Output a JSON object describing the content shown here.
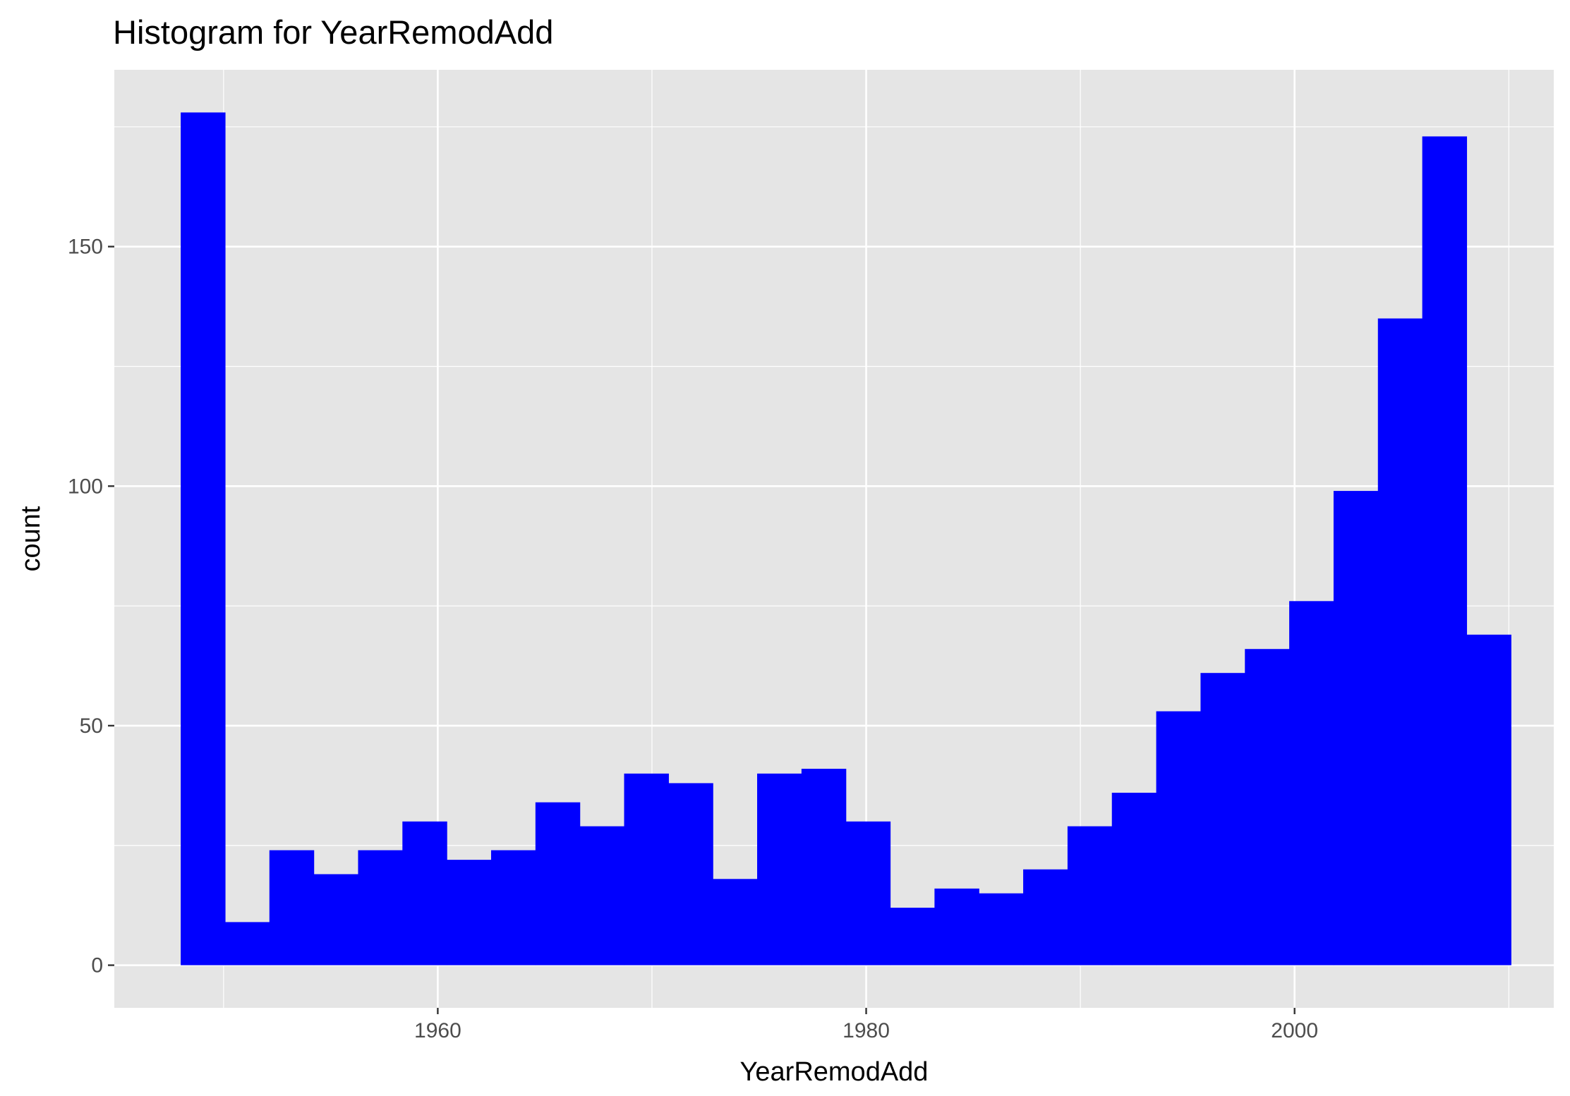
{
  "chart_data": {
    "type": "bar",
    "title": "Histogram for YearRemodAdd",
    "xlabel": "YearRemodAdd",
    "ylabel": "count",
    "bin_start": 1948,
    "bin_width": 2.07,
    "values": [
      178,
      9,
      24,
      19,
      24,
      30,
      22,
      24,
      34,
      29,
      40,
      38,
      18,
      40,
      41,
      30,
      12,
      16,
      15,
      20,
      29,
      36,
      53,
      61,
      66,
      76,
      99,
      135,
      173,
      69
    ],
    "xlim": [
      1944.9,
      2012.1
    ],
    "ylim": [
      -8.9,
      186.9
    ],
    "x_ticks": [
      "1960",
      "1980",
      "2000"
    ],
    "x_tick_values": [
      1960,
      1980,
      2000
    ],
    "y_ticks": [
      "0",
      "50",
      "100",
      "150"
    ],
    "y_tick_values": [
      0,
      50,
      100,
      150
    ],
    "fill_color": "#0000ff",
    "panel_color": "#e5e5e5",
    "grid_color": "#ffffff",
    "grid": true,
    "legend": "none"
  }
}
